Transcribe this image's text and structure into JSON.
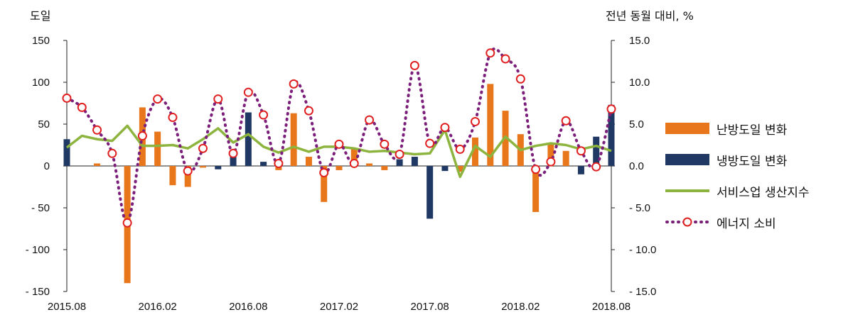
{
  "chart_data": {
    "type": "bar+line",
    "left_axis": {
      "label": "도일",
      "ylim": [
        -150,
        150
      ],
      "ticks": [
        "150",
        "100",
        "50",
        "0",
        "- 50",
        "- 100",
        "- 150"
      ]
    },
    "right_axis": {
      "label": "전년 동월 대비, %",
      "ylim": [
        -15,
        15
      ],
      "ticks": [
        "15.0",
        "10.0",
        "5.0",
        "0.0",
        "- 5.0",
        "- 10.0",
        "- 15.0"
      ]
    },
    "x_tick_labels": [
      "2015.08",
      "2016.02",
      "2016.08",
      "2017.02",
      "2017.08",
      "2018.02",
      "2018.08"
    ],
    "months": [
      "2015.08",
      "2015.09",
      "2015.10",
      "2015.11",
      "2015.12",
      "2016.01",
      "2016.02",
      "2016.03",
      "2016.04",
      "2016.05",
      "2016.06",
      "2016.07",
      "2016.08",
      "2016.09",
      "2016.10",
      "2016.11",
      "2016.12",
      "2017.01",
      "2017.02",
      "2017.03",
      "2017.04",
      "2017.05",
      "2017.06",
      "2017.07",
      "2017.08",
      "2017.09",
      "2017.10",
      "2017.11",
      "2017.12",
      "2018.01",
      "2018.02",
      "2018.03",
      "2018.04",
      "2018.05",
      "2018.06",
      "2018.07",
      "2018.08"
    ],
    "series": [
      {
        "name": "난방도일 변화",
        "type": "bar",
        "axis": "left",
        "color": "#E8761B",
        "values": [
          0,
          0,
          3,
          0,
          -140,
          70,
          41,
          -23,
          -25,
          -2,
          0,
          0,
          0,
          0,
          -5,
          63,
          11,
          -43,
          -5,
          20,
          3,
          -5,
          0,
          0,
          0,
          0,
          -7,
          34,
          98,
          66,
          38,
          -55,
          27,
          18,
          0,
          0,
          0
        ]
      },
      {
        "name": "냉방도일 변화",
        "type": "bar",
        "axis": "left",
        "color": "#1F3864",
        "values": [
          32,
          0,
          0,
          0,
          0,
          0,
          0,
          0,
          0,
          0,
          -4,
          19,
          64,
          5,
          0,
          0,
          0,
          0,
          0,
          0,
          0,
          0,
          8,
          11,
          -63,
          -6,
          0,
          0,
          0,
          0,
          0,
          0,
          0,
          0,
          -10,
          35,
          73
        ]
      },
      {
        "name": "서비스업 생산지수",
        "type": "line",
        "axis": "right",
        "color": "#8DB43E",
        "values": [
          2.2,
          3.6,
          3.2,
          3.0,
          4.8,
          2.4,
          2.4,
          2.5,
          2.1,
          3.2,
          4.5,
          2.8,
          3.8,
          2.3,
          1.6,
          2.3,
          1.7,
          2.3,
          2.3,
          2.1,
          1.7,
          1.8,
          1.6,
          1.4,
          1.5,
          4.3,
          -1.3,
          2.4,
          1.1,
          3.5,
          1.9,
          2.4,
          2.7,
          2.5,
          2.0,
          2.4,
          1.8
        ]
      },
      {
        "name": "에너지 소비",
        "type": "line",
        "axis": "right",
        "color": "#7B1F7B",
        "marker_color": "#E02020",
        "values": [
          8.1,
          7.0,
          4.3,
          1.5,
          -6.8,
          3.6,
          8.0,
          5.8,
          -0.6,
          2.1,
          8.0,
          1.5,
          8.8,
          6.1,
          0.3,
          9.8,
          6.6,
          -0.8,
          2.6,
          0.3,
          5.5,
          2.6,
          1.4,
          12.0,
          2.7,
          4.6,
          2.0,
          5.3,
          13.5,
          12.8,
          10.4,
          -0.4,
          0.5,
          5.4,
          1.8,
          -0.1,
          6.8
        ]
      }
    ]
  }
}
